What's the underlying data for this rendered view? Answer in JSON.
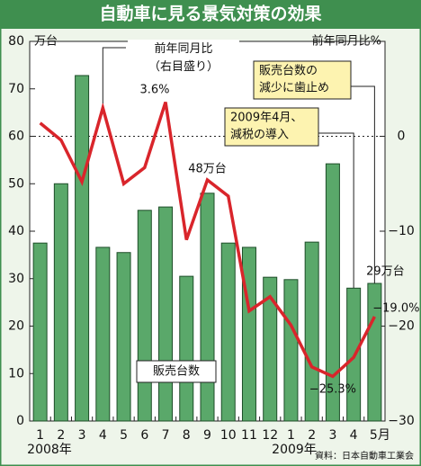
{
  "chart_data": {
    "type": "bar+line",
    "title": "自動車に見る景気対策の効果",
    "ylabel": "万台",
    "y2label": "前年同月比%",
    "categories": [
      "1",
      "2",
      "3",
      "4",
      "5",
      "6",
      "7",
      "8",
      "9",
      "10",
      "11",
      "12",
      "1",
      "2",
      "3",
      "4",
      "5月"
    ],
    "year_labels": [
      "2008年",
      "2009年"
    ],
    "series": [
      {
        "name": "販売台数",
        "type": "bar",
        "axis": "y",
        "color": "#5aa86a",
        "values": [
          37.5,
          50,
          72.8,
          36.6,
          35.5,
          44.4,
          45.1,
          30.5,
          48,
          37.5,
          36.6,
          30.3,
          29.8,
          37.7,
          54.2,
          28,
          29
        ],
        "value_labels": [
          null,
          null,
          null,
          null,
          null,
          null,
          null,
          null,
          "48万台",
          null,
          null,
          null,
          null,
          null,
          null,
          null,
          "29万台"
        ]
      },
      {
        "name": "前年同月比（右目盛り）",
        "type": "line",
        "axis": "y2",
        "color": "#d9252b",
        "values": [
          1.4,
          -0.4,
          -4.8,
          3.0,
          -5.0,
          -3.3,
          3.6,
          -10.9,
          -4.6,
          -6.3,
          -18.4,
          -16.9,
          -19.9,
          -24.3,
          -25.3,
          -23.3,
          -19.0
        ],
        "value_labels": [
          null,
          null,
          null,
          null,
          null,
          null,
          "3.6%",
          null,
          null,
          null,
          null,
          null,
          null,
          null,
          "−25.3%",
          null,
          "−19.0%"
        ]
      }
    ],
    "ylim": [
      0,
      80
    ],
    "yticks": [
      0,
      10,
      20,
      30,
      40,
      50,
      60,
      70,
      80
    ],
    "y2lim": [
      -30,
      10
    ],
    "y2ticks": [
      {
        "value": -30,
        "label": "−30"
      },
      {
        "value": -20,
        "label": "−20"
      },
      {
        "value": -10,
        "label": "−10"
      },
      0
    ],
    "annotations": [
      {
        "lines": [
          "販売台数の",
          "減少に歯止め"
        ]
      },
      {
        "lines": [
          "2009年4月、",
          "減税の導入"
        ]
      }
    ],
    "source": "資料：日本自動車工業会"
  }
}
